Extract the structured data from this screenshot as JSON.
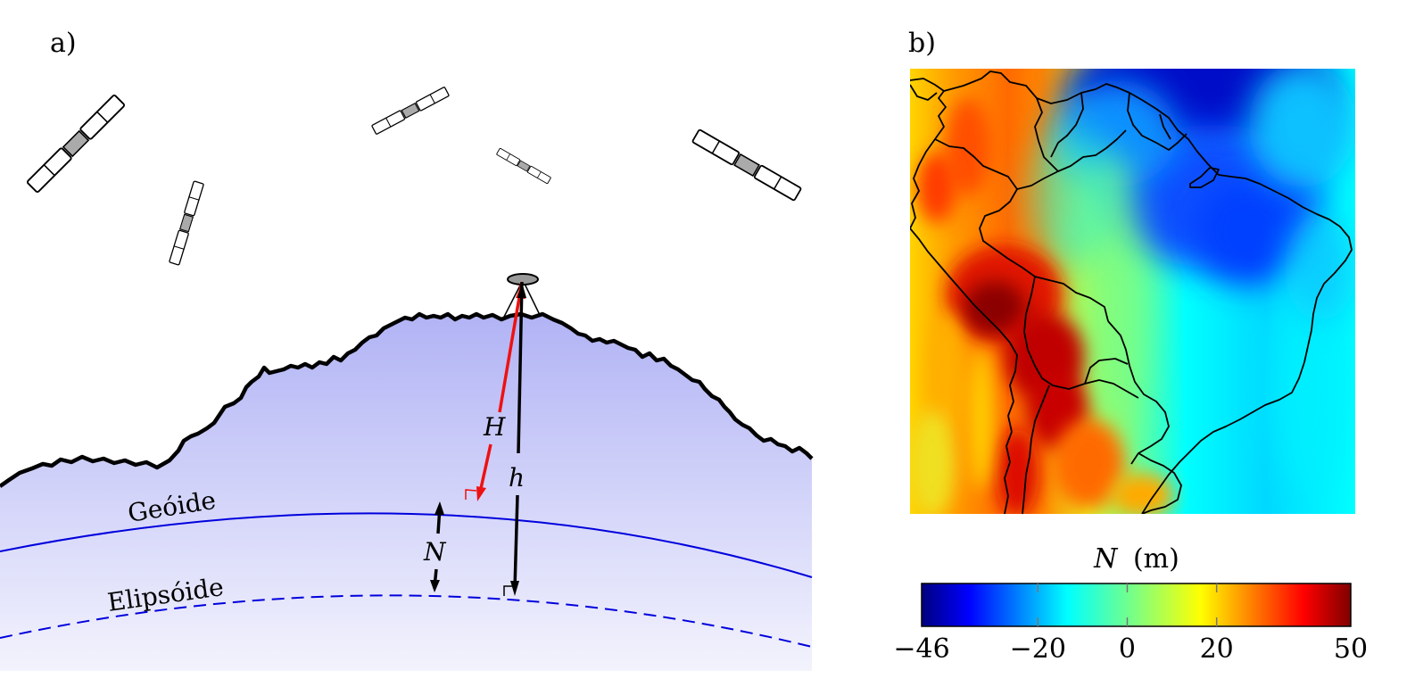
{
  "panel_a": {
    "label": "a)",
    "geoid_label": "Geóide",
    "ellipsoid_label": "Elipsóide",
    "H_label": "H",
    "h_label": "h",
    "N_label": "N"
  },
  "panel_b": {
    "label": "b)",
    "colorbar": {
      "title_symbol": "N",
      "title_unit": "(m)",
      "ticks": [
        "−46",
        "−20",
        "0",
        "20",
        "50"
      ],
      "tick_values": [
        -46,
        -20,
        0,
        20,
        50
      ],
      "min": -46,
      "max": 50,
      "colormap": "jet"
    }
  },
  "colors": {
    "terrain_fill_top": "#b1b3f5",
    "terrain_fill_bottom": "#f2f2fd",
    "geoid_line": "#0000dd",
    "ellipsoid_line": "#0000dd",
    "orthometric_arrow": "#ee1111",
    "ellipsoidal_arrow": "#000000",
    "satellite_body": "#aaaaaa"
  },
  "icons": [
    "satellite-icon",
    "gnss-receiver-icon"
  ]
}
